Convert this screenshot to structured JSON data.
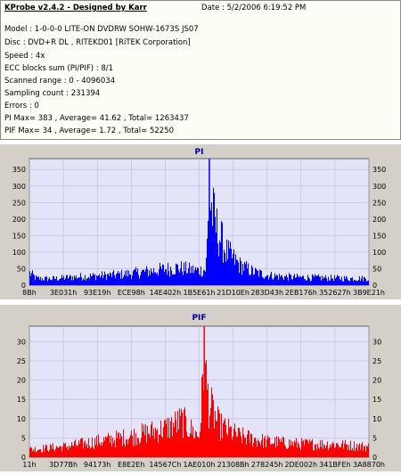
{
  "header": {
    "title": "KProbe v2.4.2 - Designed by Karr",
    "date": "Date : 5/2/2006 6:19:52 PM",
    "lines": [
      "Model : 1-0-0-0 LITE-ON DVDRW SOHW-1673S JS07",
      "Disc : DVD+R DL , RITEKD01 [RiTEK Corporation]",
      "Speed : 4x",
      "ECC blocks sum (PI/PIF) : 8/1",
      "Scanned range : 0 - 4096034",
      "Sampling count : 231394",
      "Errors : 0",
      "PI Max= 383 , Average= 41.62 , Total= 1263437",
      "PIF Max= 34 , Average= 1.72 , Total= 52250"
    ]
  },
  "chart_data": [
    {
      "type": "area",
      "title": "PI",
      "color": "#0000ff",
      "ylim": [
        0,
        383
      ],
      "y_ticks": [
        0,
        50,
        100,
        150,
        200,
        250,
        300,
        350
      ],
      "x_tick_labels": [
        "8Bh",
        "3E031h",
        "93E19h",
        "ECE98h",
        "14E402h",
        "1B5E61h",
        "21D10Eh",
        "283D43h",
        "2EB176h",
        "352627h",
        "3B9E21h"
      ],
      "max": 383,
      "envelope": [
        {
          "x": 0.0,
          "y": 55
        },
        {
          "x": 0.02,
          "y": 30
        },
        {
          "x": 0.06,
          "y": 28
        },
        {
          "x": 0.1,
          "y": 33
        },
        {
          "x": 0.15,
          "y": 38
        },
        {
          "x": 0.2,
          "y": 42
        },
        {
          "x": 0.25,
          "y": 46
        },
        {
          "x": 0.3,
          "y": 52
        },
        {
          "x": 0.35,
          "y": 62
        },
        {
          "x": 0.4,
          "y": 72
        },
        {
          "x": 0.44,
          "y": 78
        },
        {
          "x": 0.47,
          "y": 70
        },
        {
          "x": 0.5,
          "y": 65
        },
        {
          "x": 0.52,
          "y": 70
        },
        {
          "x": 0.53,
          "y": 383
        },
        {
          "x": 0.55,
          "y": 260
        },
        {
          "x": 0.58,
          "y": 150
        },
        {
          "x": 0.62,
          "y": 90
        },
        {
          "x": 0.66,
          "y": 60
        },
        {
          "x": 0.7,
          "y": 45
        },
        {
          "x": 0.75,
          "y": 38
        },
        {
          "x": 0.8,
          "y": 35
        },
        {
          "x": 0.85,
          "y": 33
        },
        {
          "x": 0.9,
          "y": 32
        },
        {
          "x": 0.95,
          "y": 30
        },
        {
          "x": 1.0,
          "y": 30
        }
      ]
    },
    {
      "type": "bar",
      "title": "PIF",
      "color": "#ff0000",
      "ylim": [
        0,
        34
      ],
      "y_ticks": [
        0,
        5,
        10,
        15,
        20,
        25,
        30
      ],
      "x_tick_labels": [
        "11h",
        "3D77Bh",
        "94173h",
        "E8E2Eh",
        "14567Ch",
        "1AE010h",
        "21308Bh",
        "278245h",
        "2DE002h",
        "341BFEh",
        "3A8870h"
      ],
      "max": 34,
      "envelope": [
        {
          "x": 0.0,
          "y": 3
        },
        {
          "x": 0.1,
          "y": 4
        },
        {
          "x": 0.2,
          "y": 6
        },
        {
          "x": 0.3,
          "y": 8
        },
        {
          "x": 0.4,
          "y": 11
        },
        {
          "x": 0.45,
          "y": 14
        },
        {
          "x": 0.48,
          "y": 10
        },
        {
          "x": 0.5,
          "y": 8
        },
        {
          "x": 0.515,
          "y": 34
        },
        {
          "x": 0.53,
          "y": 20
        },
        {
          "x": 0.56,
          "y": 12
        },
        {
          "x": 0.62,
          "y": 8
        },
        {
          "x": 0.7,
          "y": 6
        },
        {
          "x": 0.8,
          "y": 5
        },
        {
          "x": 0.9,
          "y": 5
        },
        {
          "x": 1.0,
          "y": 4
        }
      ]
    }
  ]
}
